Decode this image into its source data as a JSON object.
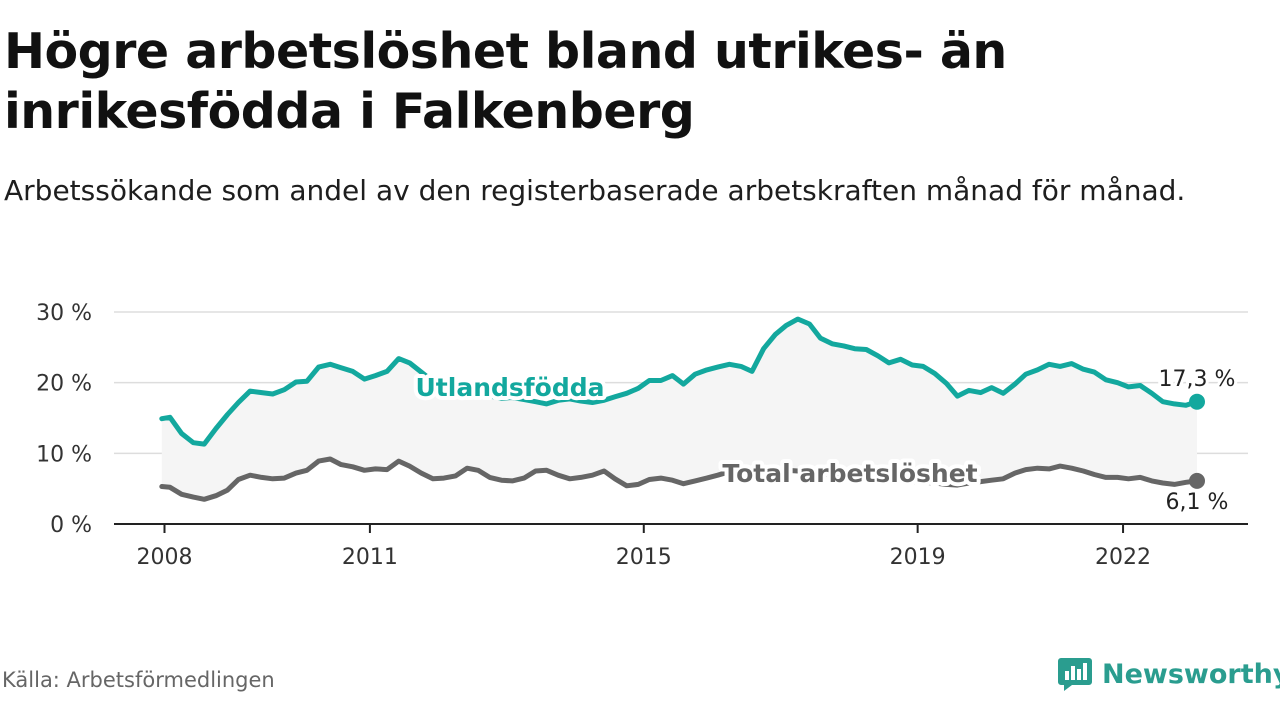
{
  "header": {
    "title": "Högre arbetslöshet bland utrikes- än inrikesfödda i Falkenberg",
    "subtitle": "Arbetssökande som andel av den registerbaserade arbetskraften månad för månad."
  },
  "footer": {
    "source": "Källa: Arbetsförmedlingen",
    "brand": "Newsworthy"
  },
  "colors": {
    "foreign": "#13a89e",
    "total": "#666666",
    "band": "#f5f5f5",
    "grid": "#dddddd",
    "axis": "#222222",
    "brand": "#2a9d8f"
  },
  "chart_data": {
    "type": "line",
    "title": "Högre arbetslöshet bland utrikes- än inrikesfödda i Falkenberg",
    "ylabel": "",
    "xlabel": "",
    "ylim": [
      0,
      30
    ],
    "xlim": [
      2008.0,
      2023.8
    ],
    "y_ticks": [
      0,
      10,
      20,
      30
    ],
    "y_tick_labels": [
      "0 %",
      "10 %",
      "20 %",
      "30 %"
    ],
    "x_ticks": [
      2008,
      2011,
      2015,
      2019,
      2022
    ],
    "x_tick_labels": [
      "2008",
      "2011",
      "2015",
      "2019",
      "2022"
    ],
    "grid": true,
    "series": [
      {
        "name": "Utlandsfödda",
        "label": "Utlandsfödda",
        "end_label": "17,3 %",
        "points": [
          [
            2007.96,
            14.9
          ],
          [
            2008.08,
            15.1
          ],
          [
            2008.25,
            12.8
          ],
          [
            2008.42,
            11.5
          ],
          [
            2008.58,
            11.3
          ],
          [
            2008.75,
            13.5
          ],
          [
            2008.92,
            15.5
          ],
          [
            2009.08,
            17.2
          ],
          [
            2009.25,
            18.8
          ],
          [
            2009.42,
            18.6
          ],
          [
            2009.58,
            18.4
          ],
          [
            2009.75,
            19.0
          ],
          [
            2009.92,
            20.1
          ],
          [
            2010.08,
            20.2
          ],
          [
            2010.25,
            22.2
          ],
          [
            2010.42,
            22.6
          ],
          [
            2010.58,
            22.1
          ],
          [
            2010.75,
            21.6
          ],
          [
            2010.92,
            20.5
          ],
          [
            2011.08,
            21.0
          ],
          [
            2011.25,
            21.6
          ],
          [
            2011.42,
            23.4
          ],
          [
            2011.58,
            22.8
          ],
          [
            2011.75,
            21.5
          ],
          [
            2011.92,
            20.2
          ],
          [
            2012.08,
            19.7
          ],
          [
            2012.25,
            19.3
          ],
          [
            2012.42,
            18.8
          ],
          [
            2012.58,
            18.4
          ],
          [
            2012.75,
            18.1
          ],
          [
            2012.92,
            17.8
          ],
          [
            2013.08,
            17.9
          ],
          [
            2013.25,
            17.6
          ],
          [
            2013.42,
            17.3
          ],
          [
            2013.58,
            17.0
          ],
          [
            2013.75,
            17.5
          ],
          [
            2013.92,
            17.7
          ],
          [
            2014.08,
            17.4
          ],
          [
            2014.25,
            17.2
          ],
          [
            2014.42,
            17.5
          ],
          [
            2014.58,
            18.0
          ],
          [
            2014.75,
            18.5
          ],
          [
            2014.92,
            19.2
          ],
          [
            2015.08,
            20.3
          ],
          [
            2015.25,
            20.3
          ],
          [
            2015.42,
            21.0
          ],
          [
            2015.58,
            19.8
          ],
          [
            2015.75,
            21.2
          ],
          [
            2015.92,
            21.8
          ],
          [
            2016.08,
            22.2
          ],
          [
            2016.25,
            22.6
          ],
          [
            2016.42,
            22.3
          ],
          [
            2016.58,
            21.6
          ],
          [
            2016.75,
            24.8
          ],
          [
            2016.92,
            26.8
          ],
          [
            2017.08,
            28.1
          ],
          [
            2017.25,
            29.0
          ],
          [
            2017.42,
            28.3
          ],
          [
            2017.58,
            26.3
          ],
          [
            2017.75,
            25.5
          ],
          [
            2017.92,
            25.2
          ],
          [
            2018.08,
            24.8
          ],
          [
            2018.25,
            24.7
          ],
          [
            2018.42,
            23.8
          ],
          [
            2018.58,
            22.8
          ],
          [
            2018.75,
            23.3
          ],
          [
            2018.92,
            22.5
          ],
          [
            2019.08,
            22.3
          ],
          [
            2019.25,
            21.3
          ],
          [
            2019.42,
            19.9
          ],
          [
            2019.58,
            18.1
          ],
          [
            2019.75,
            18.9
          ],
          [
            2019.92,
            18.6
          ],
          [
            2020.08,
            19.3
          ],
          [
            2020.25,
            18.5
          ],
          [
            2020.42,
            19.8
          ],
          [
            2020.58,
            21.2
          ],
          [
            2020.75,
            21.8
          ],
          [
            2020.92,
            22.6
          ],
          [
            2021.08,
            22.3
          ],
          [
            2021.25,
            22.7
          ],
          [
            2021.42,
            21.9
          ],
          [
            2021.58,
            21.5
          ],
          [
            2021.75,
            20.4
          ],
          [
            2021.92,
            20.0
          ],
          [
            2022.08,
            19.4
          ],
          [
            2022.25,
            19.6
          ],
          [
            2022.42,
            18.5
          ],
          [
            2022.58,
            17.3
          ],
          [
            2022.75,
            17.0
          ],
          [
            2022.92,
            16.8
          ],
          [
            2023.08,
            17.3
          ]
        ]
      },
      {
        "name": "Total arbetslöshet",
        "label": "Total arbetslöshet",
        "end_label": "6,1 %",
        "points": [
          [
            2007.96,
            5.3
          ],
          [
            2008.08,
            5.2
          ],
          [
            2008.25,
            4.2
          ],
          [
            2008.42,
            3.8
          ],
          [
            2008.58,
            3.5
          ],
          [
            2008.75,
            4.0
          ],
          [
            2008.92,
            4.8
          ],
          [
            2009.08,
            6.3
          ],
          [
            2009.25,
            6.9
          ],
          [
            2009.42,
            6.6
          ],
          [
            2009.58,
            6.4
          ],
          [
            2009.75,
            6.5
          ],
          [
            2009.92,
            7.2
          ],
          [
            2010.08,
            7.6
          ],
          [
            2010.25,
            8.9
          ],
          [
            2010.42,
            9.2
          ],
          [
            2010.58,
            8.4
          ],
          [
            2010.75,
            8.1
          ],
          [
            2010.92,
            7.6
          ],
          [
            2011.08,
            7.8
          ],
          [
            2011.25,
            7.7
          ],
          [
            2011.42,
            8.9
          ],
          [
            2011.58,
            8.2
          ],
          [
            2011.75,
            7.2
          ],
          [
            2011.92,
            6.4
          ],
          [
            2012.08,
            6.5
          ],
          [
            2012.25,
            6.8
          ],
          [
            2012.42,
            7.9
          ],
          [
            2012.58,
            7.6
          ],
          [
            2012.75,
            6.6
          ],
          [
            2012.92,
            6.2
          ],
          [
            2013.08,
            6.1
          ],
          [
            2013.25,
            6.5
          ],
          [
            2013.42,
            7.5
          ],
          [
            2013.58,
            7.6
          ],
          [
            2013.75,
            6.9
          ],
          [
            2013.92,
            6.4
          ],
          [
            2014.08,
            6.6
          ],
          [
            2014.25,
            6.9
          ],
          [
            2014.42,
            7.5
          ],
          [
            2014.58,
            6.4
          ],
          [
            2014.75,
            5.4
          ],
          [
            2014.92,
            5.6
          ],
          [
            2015.08,
            6.3
          ],
          [
            2015.25,
            6.5
          ],
          [
            2015.42,
            6.2
          ],
          [
            2015.58,
            5.7
          ],
          [
            2015.75,
            6.1
          ],
          [
            2015.92,
            6.5
          ],
          [
            2016.08,
            6.9
          ],
          [
            2016.25,
            7.4
          ],
          [
            2016.42,
            7.7
          ],
          [
            2016.58,
            7.5
          ],
          [
            2016.75,
            7.8
          ],
          [
            2016.92,
            7.9
          ],
          [
            2017.08,
            7.6
          ],
          [
            2017.25,
            7.5
          ],
          [
            2017.42,
            7.3
          ],
          [
            2017.58,
            7.1
          ],
          [
            2017.75,
            6.9
          ],
          [
            2017.92,
            6.8
          ],
          [
            2018.08,
            6.7
          ],
          [
            2018.25,
            6.6
          ],
          [
            2018.42,
            6.4
          ],
          [
            2018.58,
            6.3
          ],
          [
            2018.75,
            6.1
          ],
          [
            2018.92,
            6.0
          ],
          [
            2019.08,
            5.9
          ],
          [
            2019.25,
            5.8
          ],
          [
            2019.42,
            5.6
          ],
          [
            2019.58,
            5.5
          ],
          [
            2019.75,
            5.8
          ],
          [
            2019.92,
            6.0
          ],
          [
            2020.08,
            6.2
          ],
          [
            2020.25,
            6.4
          ],
          [
            2020.42,
            7.2
          ],
          [
            2020.58,
            7.7
          ],
          [
            2020.75,
            7.9
          ],
          [
            2020.92,
            7.8
          ],
          [
            2021.08,
            8.2
          ],
          [
            2021.25,
            7.9
          ],
          [
            2021.42,
            7.5
          ],
          [
            2021.58,
            7.0
          ],
          [
            2021.75,
            6.6
          ],
          [
            2021.92,
            6.6
          ],
          [
            2022.08,
            6.4
          ],
          [
            2022.25,
            6.6
          ],
          [
            2022.42,
            6.1
          ],
          [
            2022.58,
            5.8
          ],
          [
            2022.75,
            5.6
          ],
          [
            2022.92,
            5.9
          ],
          [
            2023.08,
            6.1
          ]
        ]
      }
    ]
  }
}
